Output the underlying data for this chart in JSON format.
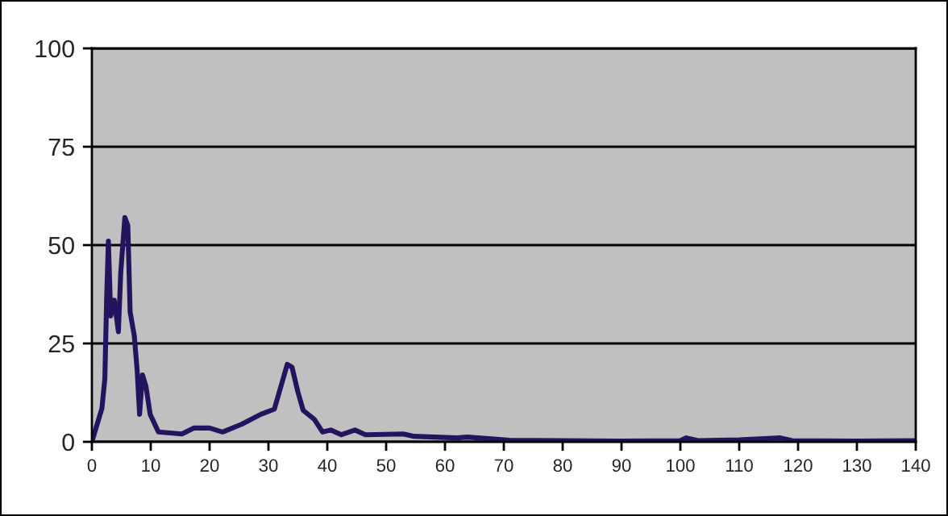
{
  "chart_data": {
    "type": "line",
    "x": [
      0,
      1.7,
      2.2,
      2.5,
      2.8,
      3.2,
      3.8,
      4.5,
      4.9,
      5.6,
      6.1,
      6.5,
      7.2,
      7.7,
      8.1,
      8.6,
      9.2,
      9.9,
      11.3,
      15.3,
      17.3,
      20,
      22.2,
      25.5,
      28.7,
      31,
      33.2,
      34,
      35,
      35.9,
      37.8,
      39.2,
      40.6,
      42.4,
      44.7,
      46.5,
      52.9,
      54.7,
      62,
      63.8,
      71,
      80,
      90,
      100,
      101,
      103,
      110,
      117,
      119,
      130,
      140
    ],
    "series": [
      {
        "color": "#24135e",
        "values": [
          0,
          8.5,
          16,
          36,
          51,
          32,
          36,
          28,
          43,
          57,
          55,
          33,
          27,
          18,
          7,
          17,
          14,
          7,
          2.5,
          2,
          3.5,
          3.5,
          2.5,
          4.5,
          7,
          8.3,
          19.7,
          19,
          12.7,
          8,
          5.7,
          2.5,
          3,
          1.8,
          3,
          1.8,
          2,
          1.4,
          1,
          1.2,
          0.4,
          0.3,
          0.2,
          0.3,
          1,
          0.3,
          0.5,
          1,
          0.3,
          0.2,
          0.3
        ]
      }
    ],
    "xlim": [
      0,
      140
    ],
    "xticks": [
      0,
      10,
      20,
      30,
      40,
      50,
      60,
      70,
      80,
      90,
      100,
      110,
      120,
      130,
      140
    ],
    "ylim": [
      0,
      100
    ],
    "yticks": [
      0,
      25,
      50,
      75,
      100
    ],
    "grid": "y",
    "legend": false,
    "marker": "none",
    "line_style": "solid"
  }
}
